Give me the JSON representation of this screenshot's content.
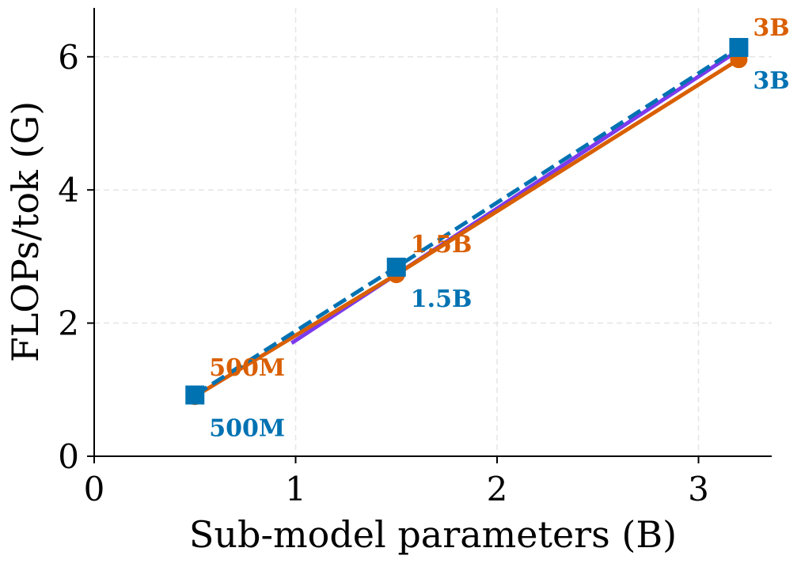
{
  "chart_data": {
    "type": "line",
    "title": "",
    "xlabel": "Sub-model parameters (B)",
    "ylabel": "FLOPs/tok (G)",
    "xlim": [
      0,
      3.35
    ],
    "ylim": [
      0,
      6.75
    ],
    "xticks": [
      0,
      1,
      2,
      3
    ],
    "yticks": [
      0,
      2,
      4,
      6
    ],
    "grid": true,
    "legend": "none",
    "series": [
      {
        "color": "#7c3aed",
        "style": "solid",
        "marker": "none",
        "x": [
          0.98,
          3.2
        ],
        "y": [
          1.7,
          6.1
        ]
      },
      {
        "color": "#d95f02",
        "style": "solid",
        "marker": "circle",
        "x": [
          0.5,
          1.5,
          3.2
        ],
        "y": [
          0.9,
          2.73,
          5.96
        ],
        "labels": [
          "500M",
          "1.5B",
          "3B"
        ]
      },
      {
        "color": "#0072b2",
        "style": "dashed",
        "marker": "square",
        "x": [
          0.5,
          1.5,
          3.2
        ],
        "y": [
          0.92,
          2.84,
          6.14
        ],
        "labels": [
          "500M",
          "1.5B",
          "3B"
        ]
      }
    ]
  }
}
